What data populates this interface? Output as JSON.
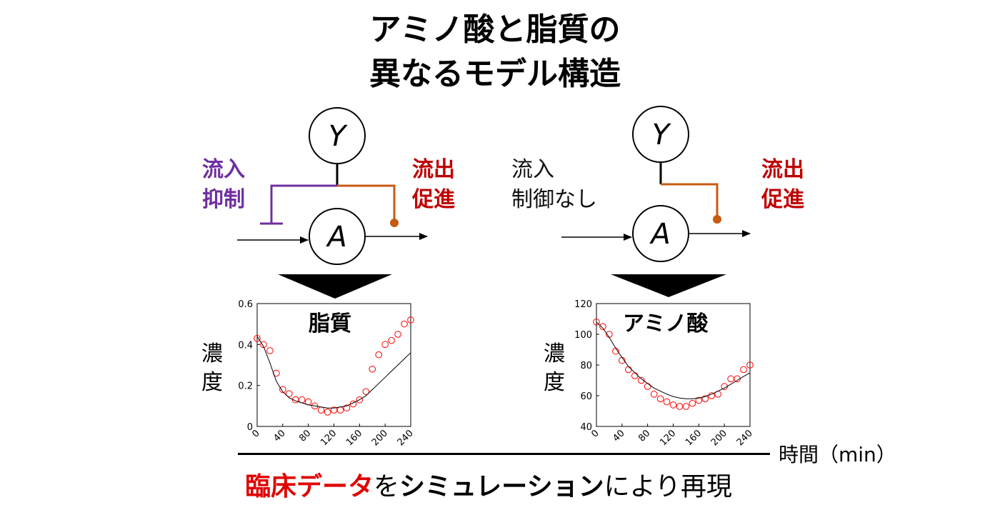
{
  "title": {
    "line1": "アミノ酸と脂質の",
    "line2": "異なるモデル構造"
  },
  "left_model": {
    "node_top": "Y",
    "node_main": "A",
    "inflow_label_1": "流入",
    "inflow_label_2": "抑制",
    "outflow_label_1": "流出",
    "outflow_label_2": "促進",
    "inflow_color": "#6f2fa0",
    "outflow_color": "#c55a11"
  },
  "right_model": {
    "node_top": "Y",
    "node_main": "A",
    "inflow_label_1": "流入",
    "inflow_label_2": "制御なし",
    "outflow_label_1": "流出",
    "outflow_label_2": "促進",
    "outflow_color": "#c55a11"
  },
  "y_axis_label": [
    "濃",
    "度"
  ],
  "x_axis_label": "時間（min）",
  "bottom": {
    "part1": "臨床データ",
    "part2": "を",
    "part3": "シミュレーション",
    "part4": "により再現"
  },
  "chart_data": [
    {
      "type": "scatter",
      "title": "脂質",
      "xlim": [
        0,
        240
      ],
      "ylim": [
        0,
        0.6
      ],
      "xticks": [
        0,
        40,
        80,
        120,
        160,
        200,
        240
      ],
      "yticks": [
        0,
        0.2,
        0.4,
        0.6
      ],
      "ytick_labels": [
        "0",
        "0.2",
        "0.4",
        "0.6"
      ],
      "series": [
        {
          "kind": "observed",
          "marker": "circle",
          "color": "#ff0000",
          "x": [
            0,
            10,
            20,
            30,
            40,
            50,
            60,
            70,
            80,
            90,
            100,
            110,
            120,
            130,
            140,
            150,
            160,
            170,
            180,
            190,
            200,
            210,
            220,
            230,
            240
          ],
          "y": [
            0.43,
            0.4,
            0.37,
            0.26,
            0.18,
            0.16,
            0.13,
            0.13,
            0.12,
            0.1,
            0.08,
            0.07,
            0.08,
            0.08,
            0.09,
            0.11,
            0.13,
            0.17,
            0.28,
            0.35,
            0.4,
            0.42,
            0.45,
            0.5,
            0.52
          ]
        },
        {
          "kind": "simulated",
          "marker": "line",
          "color": "#000000",
          "x": [
            0,
            10,
            20,
            30,
            40,
            50,
            60,
            70,
            80,
            90,
            100,
            110,
            120,
            130,
            140,
            150,
            160,
            170,
            180,
            190,
            200,
            210,
            220,
            230,
            240
          ],
          "y": [
            0.44,
            0.39,
            0.31,
            0.22,
            0.17,
            0.14,
            0.125,
            0.115,
            0.105,
            0.1,
            0.095,
            0.09,
            0.09,
            0.095,
            0.1,
            0.115,
            0.13,
            0.15,
            0.18,
            0.21,
            0.24,
            0.27,
            0.3,
            0.33,
            0.36
          ]
        }
      ]
    },
    {
      "type": "scatter",
      "title": "アミノ酸",
      "xlim": [
        0,
        240
      ],
      "ylim": [
        40,
        120
      ],
      "xticks": [
        0,
        40,
        80,
        120,
        160,
        200,
        240
      ],
      "yticks": [
        40,
        60,
        80,
        100,
        120
      ],
      "ytick_labels": [
        "40",
        "60",
        "80",
        "100",
        "120"
      ],
      "series": [
        {
          "kind": "observed",
          "marker": "circle",
          "color": "#ff0000",
          "x": [
            0,
            10,
            20,
            30,
            40,
            50,
            60,
            70,
            80,
            90,
            100,
            110,
            120,
            130,
            140,
            150,
            160,
            170,
            180,
            190,
            200,
            210,
            220,
            230,
            240
          ],
          "y": [
            108,
            105,
            100,
            89,
            83,
            77,
            73,
            70,
            66,
            61,
            58,
            56,
            54,
            53,
            53,
            55,
            57,
            58,
            60,
            61,
            66,
            71,
            71,
            77,
            80
          ]
        },
        {
          "kind": "simulated",
          "marker": "line",
          "color": "#000000",
          "x": [
            0,
            10,
            20,
            30,
            40,
            50,
            60,
            70,
            80,
            90,
            100,
            110,
            120,
            130,
            140,
            150,
            160,
            170,
            180,
            190,
            200,
            210,
            220,
            230,
            240
          ],
          "y": [
            108,
            104,
            98,
            91,
            85,
            79,
            75,
            71,
            68,
            65,
            63,
            61,
            59.5,
            58.5,
            58,
            58,
            58.5,
            59.5,
            61,
            63,
            65,
            67.5,
            70,
            72.5,
            75
          ]
        }
      ]
    }
  ]
}
